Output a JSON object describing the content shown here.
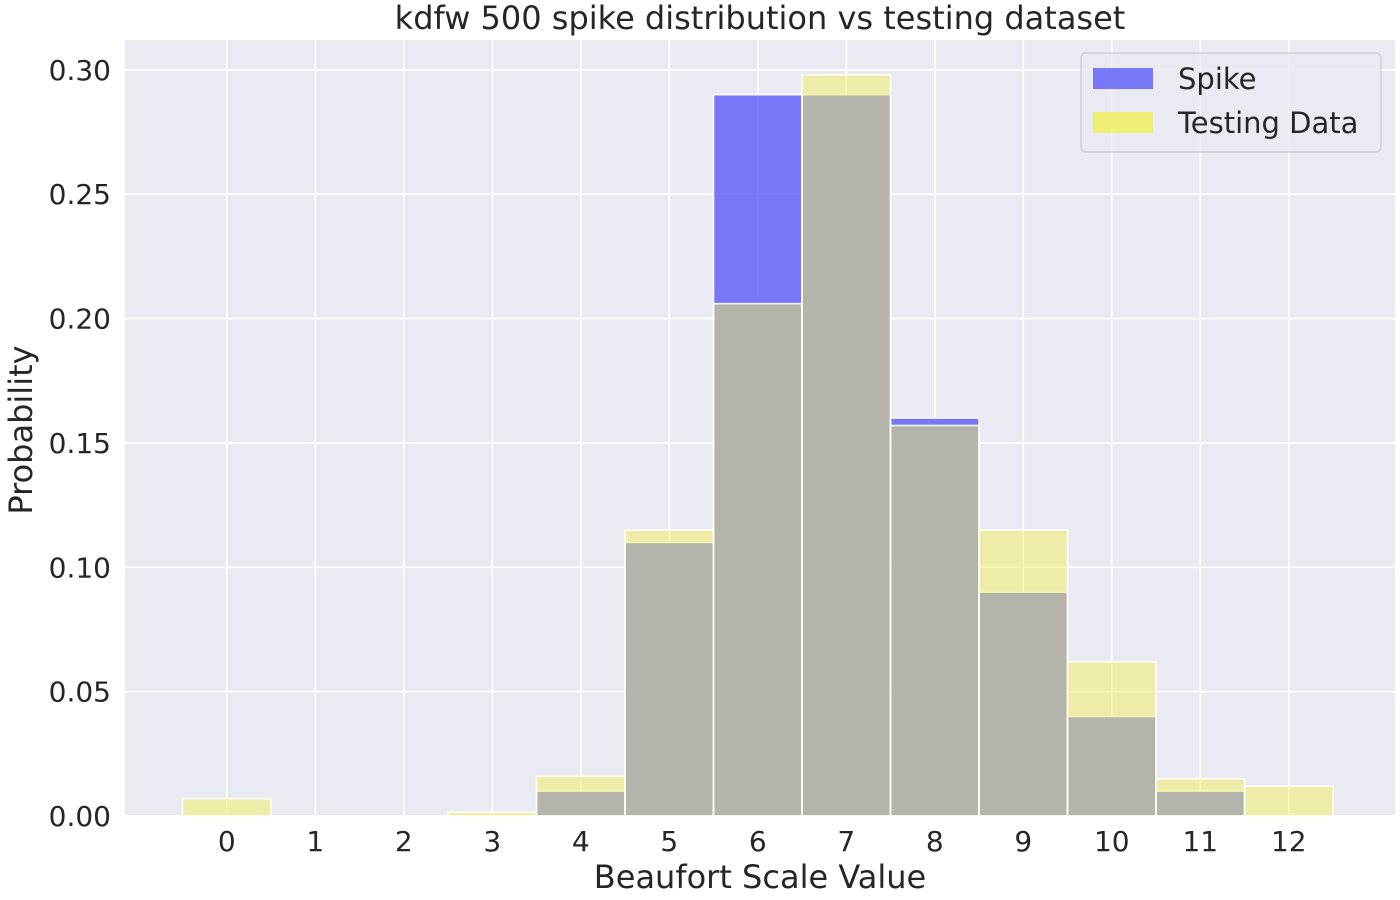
{
  "chart_data": {
    "type": "bar",
    "title": "kdfw 500 spike distribution vs testing dataset",
    "xlabel": "Beaufort Scale Value",
    "ylabel": "Probability",
    "categories": [
      "0",
      "1",
      "2",
      "3",
      "4",
      "5",
      "6",
      "7",
      "8",
      "9",
      "10",
      "11",
      "12"
    ],
    "x": [
      0,
      1,
      2,
      3,
      4,
      5,
      6,
      7,
      8,
      9,
      10,
      11,
      12
    ],
    "xlim": [
      -1.15,
      13.2
    ],
    "ylim": [
      0,
      0.312
    ],
    "yticks": [
      "0.00",
      "0.05",
      "0.10",
      "0.15",
      "0.20",
      "0.25",
      "0.30"
    ],
    "ytick_values": [
      0,
      0.05,
      0.1,
      0.15,
      0.2,
      0.25,
      0.3
    ],
    "grid": true,
    "legend_position": "top-right",
    "series": [
      {
        "name": "Spike",
        "color": "#6b6bf7",
        "values": [
          0,
          0,
          0,
          0,
          0.01,
          0.11,
          0.29,
          0.29,
          0.16,
          0.09,
          0.04,
          0.01,
          0
        ]
      },
      {
        "name": "Testing Data",
        "color": "#f0f060",
        "values": [
          0.007,
          0,
          0,
          0.0015,
          0.016,
          0.115,
          0.206,
          0.298,
          0.157,
          0.115,
          0.062,
          0.015,
          0.012
        ]
      }
    ],
    "colors": {
      "background": "#eaeaf2",
      "grid": "#ffffff",
      "overlap": "#b8b87d"
    }
  }
}
